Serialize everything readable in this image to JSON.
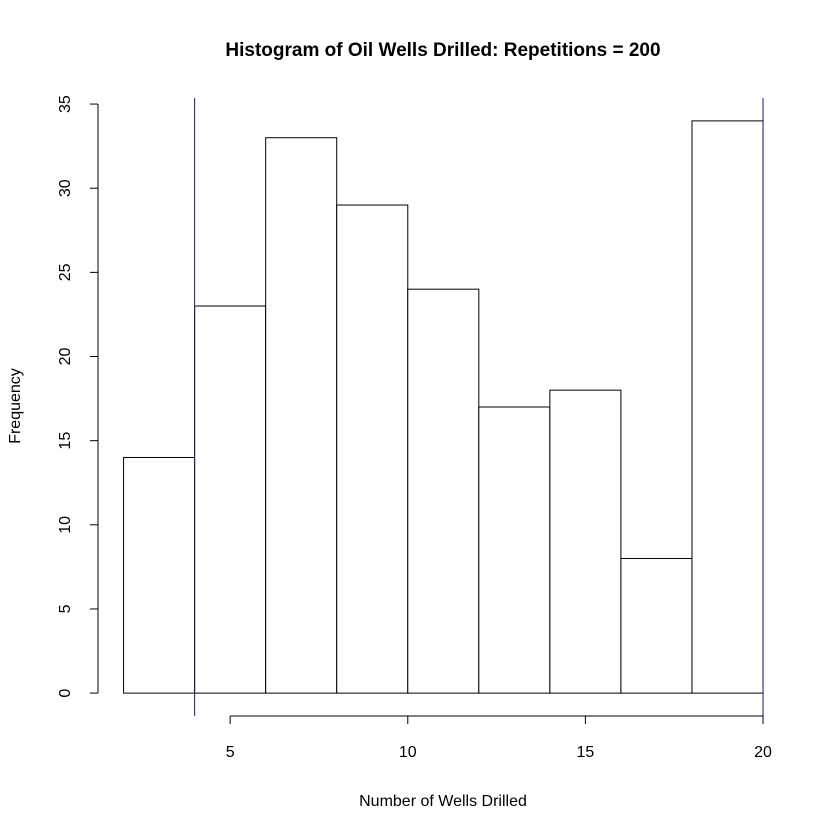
{
  "chart_data": {
    "type": "histogram",
    "title": "Histogram of Oil Wells Drilled: Repetitions = 200",
    "x_label": "Number of Wells Drilled",
    "y_label": "Frequency",
    "bins": [
      2,
      4,
      6,
      8,
      10,
      12,
      14,
      16,
      18,
      20
    ],
    "values": [
      14,
      23,
      33,
      29,
      24,
      17,
      18,
      8,
      34
    ],
    "color": "#ffffff",
    "edge_color": "#000000",
    "vlines": [
      4,
      20
    ],
    "vline_color": "#191970",
    "xlim": [
      1.28,
      20.72
    ],
    "ylim": [
      -1.36,
      35.36
    ],
    "xticks": [
      5,
      10,
      15,
      20
    ],
    "yticks": [
      0,
      5,
      10,
      15,
      20,
      25,
      30,
      35
    ]
  }
}
